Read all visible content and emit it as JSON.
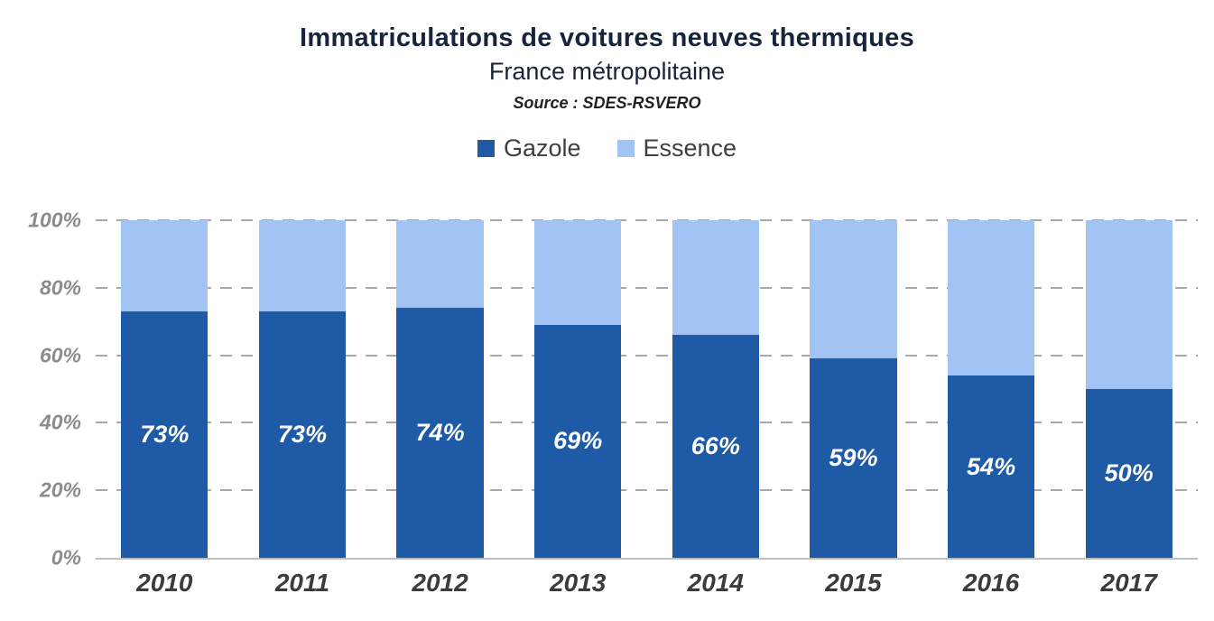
{
  "header": {
    "title": "Immatriculations de voitures neuves thermiques",
    "subtitle": "France métropolitaine",
    "source": "Source : SDES-RSVERO"
  },
  "legend": [
    {
      "label": "Gazole",
      "color": "#1E5AA5"
    },
    {
      "label": "Essence",
      "color": "#A2C4F5"
    }
  ],
  "chart_data": {
    "type": "bar",
    "stacked": true,
    "title": "Immatriculations de voitures neuves thermiques",
    "subtitle": "France métropolitaine",
    "source": "Source : SDES-RSVERO",
    "categories": [
      "2010",
      "2011",
      "2012",
      "2013",
      "2014",
      "2015",
      "2016",
      "2017"
    ],
    "series": [
      {
        "name": "Gazole",
        "color": "#1E5AA5",
        "values": [
          73,
          73,
          74,
          69,
          66,
          59,
          54,
          50
        ],
        "labels": [
          "73%",
          "73%",
          "74%",
          "69%",
          "66%",
          "59%",
          "54%",
          "50%"
        ]
      },
      {
        "name": "Essence",
        "color": "#A2C4F5",
        "values": [
          27,
          27,
          26,
          31,
          34,
          41,
          46,
          50
        ]
      }
    ],
    "xlabel": "",
    "ylabel": "",
    "ylim": [
      0,
      100
    ],
    "y_ticks": [
      "0%",
      "20%",
      "40%",
      "60%",
      "80%",
      "100%"
    ],
    "grid": "dashed-horizontal",
    "legend_position": "top"
  }
}
